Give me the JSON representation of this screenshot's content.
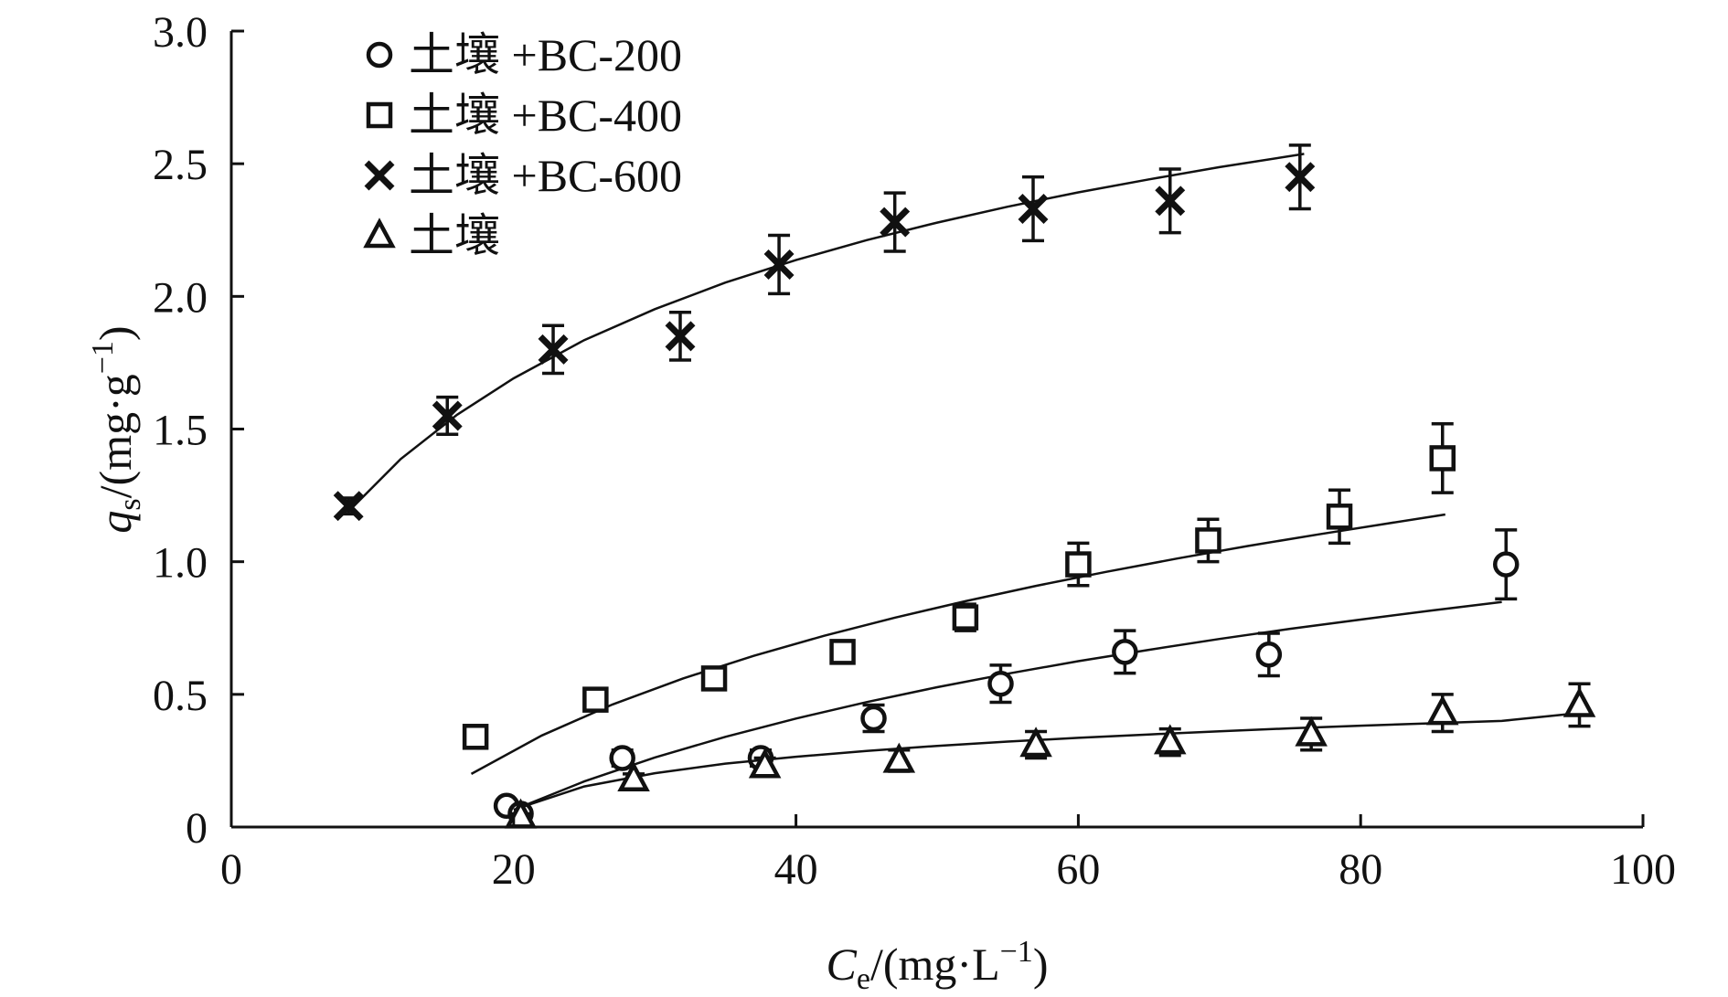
{
  "chart_data": {
    "type": "scatter",
    "title": "",
    "xlabel": {
      "symbol": "C",
      "subscript": "e",
      "unit_open": "/(mg·L",
      "unit_sup": "−1",
      "unit_close": ")"
    },
    "ylabel": {
      "symbol": "q",
      "subscript": "s",
      "unit_open": "/(mg·g",
      "unit_sup": "−1",
      "unit_close": ")"
    },
    "xlim": [
      0,
      100
    ],
    "ylim": [
      0,
      3.0
    ],
    "x_ticks": [
      "0",
      "20",
      "40",
      "60",
      "80",
      "100"
    ],
    "y_ticks": [
      "0",
      "0.5",
      "1.0",
      "1.5",
      "2.0",
      "2.5",
      "3.0"
    ],
    "x_tick_values": [
      0,
      20,
      40,
      60,
      80,
      100
    ],
    "y_tick_values": [
      0,
      0.5,
      1.0,
      1.5,
      2.0,
      2.5,
      3.0
    ],
    "grid": false,
    "legend_position": "top-left",
    "series": [
      {
        "name": "土壤 +BC-200",
        "marker": "circle",
        "points": [
          {
            "x": 19.5,
            "y": 0.08,
            "err": 0.02
          },
          {
            "x": 20.5,
            "y": 0.05,
            "err": 0.02
          },
          {
            "x": 27.7,
            "y": 0.26,
            "err": 0.03
          },
          {
            "x": 37.5,
            "y": 0.26,
            "err": 0.03
          },
          {
            "x": 45.5,
            "y": 0.41,
            "err": 0.05
          },
          {
            "x": 54.5,
            "y": 0.54,
            "err": 0.07
          },
          {
            "x": 63.3,
            "y": 0.66,
            "err": 0.08
          },
          {
            "x": 73.5,
            "y": 0.65,
            "err": 0.08
          },
          {
            "x": 90.3,
            "y": 0.99,
            "err": 0.13
          }
        ],
        "fit": {
          "x": [
            20,
            25,
            30,
            35,
            40,
            45,
            50,
            55,
            60,
            65,
            70,
            75,
            80,
            85,
            90
          ],
          "y": [
            0.065,
            0.172,
            0.262,
            0.34,
            0.409,
            0.471,
            0.527,
            0.578,
            0.625,
            0.668,
            0.709,
            0.747,
            0.782,
            0.816,
            0.848
          ]
        }
      },
      {
        "name": "土壤 +BC-400",
        "marker": "square",
        "points": [
          {
            "x": 17.3,
            "y": 0.34,
            "err": 0.03
          },
          {
            "x": 25.8,
            "y": 0.48,
            "err": 0.03
          },
          {
            "x": 34.2,
            "y": 0.56,
            "err": 0.03
          },
          {
            "x": 43.3,
            "y": 0.66,
            "err": 0.04
          },
          {
            "x": 52.0,
            "y": 0.79,
            "err": 0.05
          },
          {
            "x": 60.0,
            "y": 0.99,
            "err": 0.08
          },
          {
            "x": 69.2,
            "y": 1.08,
            "err": 0.08
          },
          {
            "x": 78.5,
            "y": 1.17,
            "err": 0.1
          },
          {
            "x": 85.8,
            "y": 1.39,
            "err": 0.13
          }
        ],
        "fit": {
          "x": [
            17,
            22,
            27,
            32,
            37,
            42,
            47,
            52,
            57,
            62,
            67,
            72,
            77,
            82,
            86
          ],
          "y": [
            0.2,
            0.345,
            0.462,
            0.56,
            0.645,
            0.721,
            0.789,
            0.851,
            0.909,
            0.962,
            1.012,
            1.059,
            1.103,
            1.145,
            1.178
          ]
        }
      },
      {
        "name": "土壤 +BC-600",
        "marker": "cross",
        "points": [
          {
            "x": 8.3,
            "y": 1.21,
            "err": 0.03
          },
          {
            "x": 15.3,
            "y": 1.55,
            "err": 0.07
          },
          {
            "x": 22.8,
            "y": 1.8,
            "err": 0.09
          },
          {
            "x": 31.8,
            "y": 1.85,
            "err": 0.09
          },
          {
            "x": 38.8,
            "y": 2.12,
            "err": 0.11
          },
          {
            "x": 47.0,
            "y": 2.28,
            "err": 0.11
          },
          {
            "x": 56.8,
            "y": 2.33,
            "err": 0.12
          },
          {
            "x": 66.5,
            "y": 2.36,
            "err": 0.12
          },
          {
            "x": 75.7,
            "y": 2.45,
            "err": 0.12
          }
        ],
        "fit": {
          "x": [
            8.5,
            12,
            16,
            20,
            25,
            30,
            35,
            40,
            45,
            50,
            55,
            60,
            65,
            70,
            76
          ],
          "y": [
            1.2,
            1.387,
            1.554,
            1.691,
            1.835,
            1.952,
            2.052,
            2.137,
            2.212,
            2.278,
            2.338,
            2.392,
            2.441,
            2.487,
            2.537
          ]
        }
      },
      {
        "name": "土壤",
        "marker": "triangle",
        "points": [
          {
            "x": 20.5,
            "y": 0.04,
            "err": 0.01
          },
          {
            "x": 28.5,
            "y": 0.18,
            "err": 0.02
          },
          {
            "x": 37.8,
            "y": 0.23,
            "err": 0.03
          },
          {
            "x": 47.3,
            "y": 0.25,
            "err": 0.04
          },
          {
            "x": 57.0,
            "y": 0.31,
            "err": 0.05
          },
          {
            "x": 66.5,
            "y": 0.32,
            "err": 0.05
          },
          {
            "x": 76.5,
            "y": 0.35,
            "err": 0.06
          },
          {
            "x": 85.8,
            "y": 0.43,
            "err": 0.07
          },
          {
            "x": 95.5,
            "y": 0.46,
            "err": 0.08
          }
        ],
        "fit": {
          "x": [
            20,
            25,
            30,
            35,
            40,
            45,
            50,
            55,
            60,
            65,
            70,
            75,
            80,
            85,
            90,
            95.5
          ],
          "y": [
            0.065,
            0.153,
            0.203,
            0.239,
            0.265,
            0.287,
            0.306,
            0.322,
            0.336,
            0.349,
            0.361,
            0.372,
            0.382,
            0.391,
            0.4,
            0.43
          ]
        }
      }
    ]
  }
}
